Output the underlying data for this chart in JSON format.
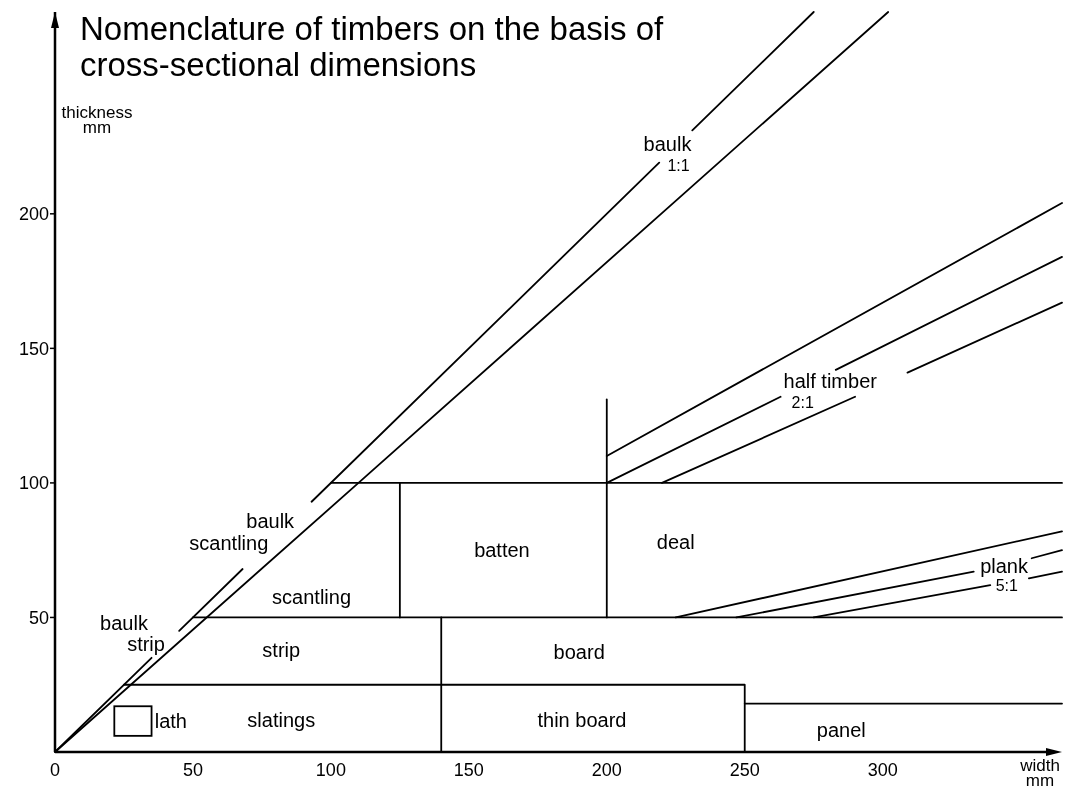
{
  "chart_data": {
    "type": "line",
    "title": "Nomenclature of timbers on the basis of cross-sectional dimensions",
    "xlabel": "width mm",
    "ylabel": "thickness mm",
    "xlim": [
      0,
      365
    ],
    "ylim": [
      0,
      275
    ],
    "xticks": [
      0,
      50,
      100,
      150,
      200,
      250,
      300
    ],
    "yticks": [
      50,
      100,
      150,
      200
    ],
    "series": [
      {
        "color": "#000000",
        "x": [
          0,
          35
        ],
        "values": [
          0,
          35
        ]
      },
      {
        "color": "#000000",
        "x": [
          45,
          68
        ],
        "values": [
          45,
          68
        ]
      },
      {
        "color": "#000000",
        "x": [
          93,
          219
        ],
        "values": [
          93,
          219
        ]
      },
      {
        "color": "#000000",
        "x": [
          231,
          275
        ],
        "values": [
          231,
          275
        ]
      },
      {
        "color": "#000000",
        "x": [
          0,
          110,
          302
        ],
        "values": [
          0,
          100,
          275
        ]
      },
      {
        "color": "#000000",
        "x": [
          25,
          250,
          250
        ],
        "values": [
          25,
          25,
          0
        ]
      },
      {
        "color": "#000000",
        "x": [
          250,
          365
        ],
        "values": [
          18,
          18
        ]
      },
      {
        "color": "#000000",
        "x": [
          140,
          140
        ],
        "values": [
          0,
          50
        ]
      },
      {
        "color": "#000000",
        "x": [
          50,
          365
        ],
        "values": [
          50,
          50
        ]
      },
      {
        "color": "#000000",
        "x": [
          125,
          125
        ],
        "values": [
          50,
          100
        ]
      },
      {
        "color": "#000000",
        "x": [
          200,
          200
        ],
        "values": [
          50,
          131
        ]
      },
      {
        "color": "#000000",
        "x": [
          100,
          365
        ],
        "values": [
          100,
          100
        ]
      },
      {
        "color": "#000000",
        "x": [
          200,
          365
        ],
        "values": [
          110,
          204
        ]
      },
      {
        "color": "#000000",
        "x": [
          200,
          263
        ],
        "values": [
          100,
          132
        ]
      },
      {
        "color": "#000000",
        "x": [
          283,
          365
        ],
        "values": [
          142,
          184
        ]
      },
      {
        "color": "#000000",
        "x": [
          220,
          290
        ],
        "values": [
          100,
          132
        ]
      },
      {
        "color": "#000000",
        "x": [
          309,
          365
        ],
        "values": [
          141,
          167
        ]
      },
      {
        "color": "#000000",
        "x": [
          225,
          365
        ],
        "values": [
          50,
          82
        ]
      },
      {
        "color": "#000000",
        "x": [
          247,
          333
        ],
        "values": [
          50,
          67
        ]
      },
      {
        "color": "#000000",
        "x": [
          354,
          365
        ],
        "values": [
          72,
          75
        ]
      },
      {
        "color": "#000000",
        "x": [
          275,
          339
        ],
        "values": [
          50,
          62
        ]
      },
      {
        "color": "#000000",
        "x": [
          353,
          365
        ],
        "values": [
          64.5,
          67
        ]
      }
    ],
    "annotations": [
      "baulk",
      "1:1",
      "baulk",
      "scantling",
      "scantling",
      "baulk",
      "strip",
      "strip",
      "lath",
      "slatings",
      "batten",
      "deal",
      "half timber",
      "2:1",
      "plank",
      "5:1",
      "board",
      "thin board",
      "panel"
    ]
  }
}
